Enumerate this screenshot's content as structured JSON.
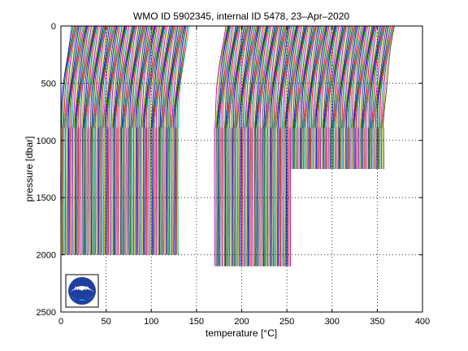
{
  "chart_data": {
    "type": "line",
    "title": "WMO ID 5902345, internal ID 5478, 23–Apr–2020",
    "xlabel": "temperature [°C]",
    "ylabel": "pressure [dbar]",
    "xlim": [
      0,
      400
    ],
    "ylim": [
      2500,
      0
    ],
    "y_reversed": true,
    "grid": true,
    "x_ticks": [
      "0",
      "50",
      "100",
      "150",
      "200",
      "250",
      "300",
      "350",
      "400"
    ],
    "y_ticks": [
      "0",
      "500",
      "1000",
      "1500",
      "2000",
      "2500"
    ],
    "series_colors": [
      "#0000ff",
      "#008000",
      "#ff0000",
      "#00bfbf",
      "#bf00bf",
      "#bfbf00",
      "#404040"
    ],
    "profile_groups": [
      {
        "offset_start": 0,
        "offset_end": 130,
        "bottom_pressure": 2000
      },
      {
        "offset_start": 170,
        "offset_end": 255,
        "bottom_pressure": 2100
      },
      {
        "offset_start": 255,
        "offset_end": 358,
        "bottom_pressure": 1250
      }
    ],
    "profile_spacing": 1.2,
    "typical_profile_shape": "surface ~+12 °C above deep value, cooling to near-constant below ~900 dbar",
    "logo": "noaa-logo"
  }
}
